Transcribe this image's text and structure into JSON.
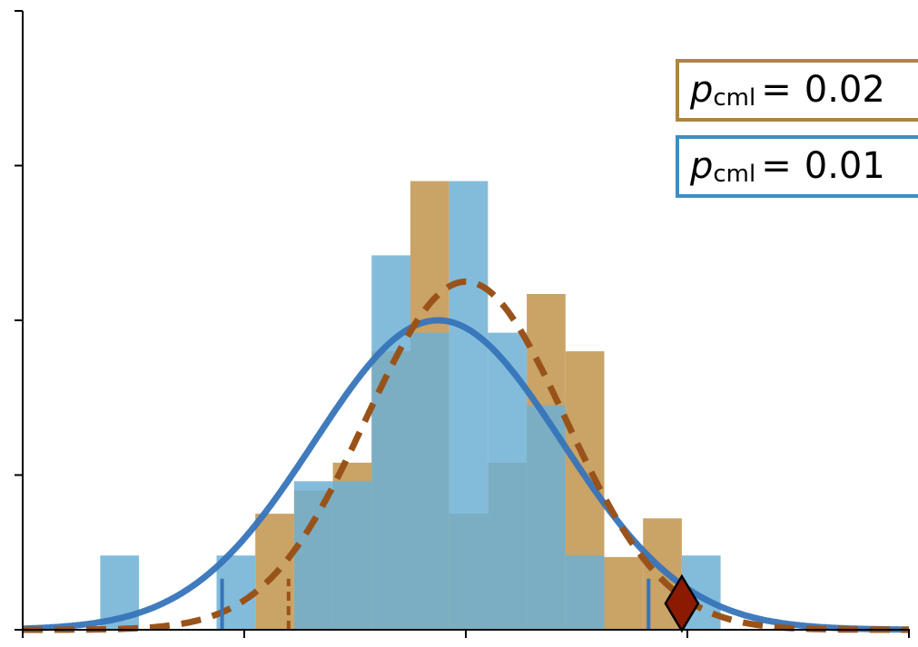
{
  "chart_data": {
    "type": "bar",
    "title": "",
    "xlabel": "",
    "ylabel": "",
    "xlim": [
      0,
      8
    ],
    "ylim": [
      0,
      4
    ],
    "x_ticks_count": 5,
    "y_ticks_count": 5,
    "tick_labels_visible": false,
    "grid": false,
    "bin_width": 0.35,
    "series": [
      {
        "kind": "histogram",
        "color": "#c9a264",
        "bins": [
          {
            "x0": 2.1,
            "x1": 2.45,
            "count": 0.75
          },
          {
            "x0": 2.45,
            "x1": 2.8,
            "count": 0.9
          },
          {
            "x0": 2.8,
            "x1": 3.15,
            "count": 1.08
          },
          {
            "x0": 3.15,
            "x1": 3.5,
            "count": 1.8
          },
          {
            "x0": 3.5,
            "x1": 3.85,
            "count": 2.9
          },
          {
            "x0": 3.85,
            "x1": 4.2,
            "count": 0.75
          },
          {
            "x0": 4.2,
            "x1": 4.55,
            "count": 1.08
          },
          {
            "x0": 4.55,
            "x1": 4.9,
            "count": 2.17
          },
          {
            "x0": 4.9,
            "x1": 5.25,
            "count": 1.8
          },
          {
            "x0": 5.25,
            "x1": 5.6,
            "count": 0.47
          },
          {
            "x0": 5.6,
            "x1": 5.95,
            "count": 0.72
          }
        ]
      },
      {
        "kind": "histogram",
        "color": "#6cafd4",
        "bins": [
          {
            "x0": 0.7,
            "x1": 1.05,
            "count": 0.48
          },
          {
            "x0": 1.75,
            "x1": 2.1,
            "count": 0.48
          },
          {
            "x0": 2.45,
            "x1": 2.8,
            "count": 0.96
          },
          {
            "x0": 2.8,
            "x1": 3.15,
            "count": 0.96
          },
          {
            "x0": 3.15,
            "x1": 3.5,
            "count": 2.42
          },
          {
            "x0": 3.5,
            "x1": 3.85,
            "count": 1.92
          },
          {
            "x0": 3.85,
            "x1": 4.2,
            "count": 2.9
          },
          {
            "x0": 4.2,
            "x1": 4.55,
            "count": 1.92
          },
          {
            "x0": 4.55,
            "x1": 4.9,
            "count": 1.45
          },
          {
            "x0": 4.9,
            "x1": 5.25,
            "count": 0.48
          },
          {
            "x0": 5.95,
            "x1": 6.3,
            "count": 0.48
          }
        ]
      },
      {
        "kind": "normal_curve",
        "color": "#3674bb",
        "style": "solid",
        "mean": 3.75,
        "sd": 1.12,
        "peak": 2.0
      },
      {
        "kind": "normal_curve",
        "color": "#99531a",
        "style": "dashed",
        "mean": 4.0,
        "sd": 0.9,
        "peak": 2.25
      }
    ],
    "cutoffs": [
      {
        "x": 2.4,
        "color": "#99531a",
        "style": "dashed"
      },
      {
        "x": 1.8,
        "color": "#3674bb",
        "style": "solid"
      },
      {
        "x": 5.65,
        "color": "#3674bb",
        "style": "solid"
      }
    ],
    "observed_marker": {
      "x": 5.95,
      "y": 0.17,
      "shape": "diamond",
      "color": "#8b1a00"
    },
    "annotations": [
      {
        "label_var": "p",
        "label_sub": "cml",
        "equals": "=",
        "value": "0.02",
        "border_color": "#b0843f"
      },
      {
        "label_var": "p",
        "label_sub": "cml",
        "equals": "=",
        "value": "0.01",
        "border_color": "#3b8fc4"
      }
    ]
  }
}
